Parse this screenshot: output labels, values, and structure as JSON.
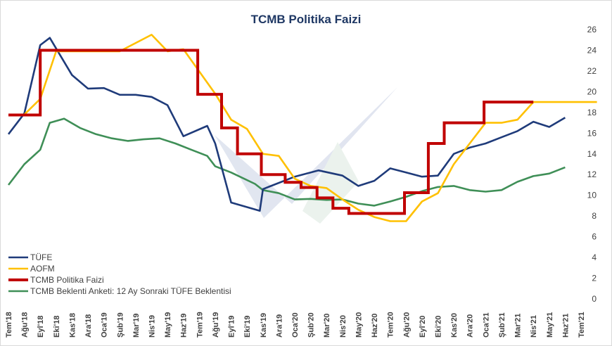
{
  "chart_data": {
    "type": "line",
    "title": "TCMB Politika Faizi",
    "xlabel": "",
    "ylabel": "",
    "ylim": [
      0,
      26
    ],
    "yticks": [
      0,
      2,
      4,
      6,
      8,
      10,
      12,
      14,
      16,
      18,
      20,
      22,
      24,
      26
    ],
    "y_axis_side": "right",
    "grid": false,
    "legend_position": "bottom-left",
    "tick_labels": [
      "Tem'18",
      "Ağu'18",
      "Eyl'18",
      "Eki'18",
      "Kas'18",
      "Ara'18",
      "Oca'19",
      "Şub'19",
      "Mar'19",
      "Nis'19",
      "May'19",
      "Haz'19",
      "Tem'19",
      "Ağu'19",
      "Eyl'19",
      "Eki'19",
      "Kas'19",
      "Ara'19",
      "Oca'20",
      "Şub'20",
      "Mar'20",
      "Nis'20",
      "May'20",
      "Haz'20",
      "Tem'20",
      "Ağu'20",
      "Eyl'20",
      "Eki'20",
      "Kas'20",
      "Ara'20",
      "Oca'21",
      "Şub'21",
      "Mar'21",
      "Nis'21",
      "May'21",
      "Haz'21",
      "Tem'21"
    ],
    "series": [
      {
        "name": "TÜFE",
        "color": "#1f3b7a",
        "style": "line",
        "points": [
          [
            0,
            15.9
          ],
          [
            1,
            17.9
          ],
          [
            2,
            24.5
          ],
          [
            2.6,
            25.2
          ],
          [
            4,
            21.6
          ],
          [
            5,
            20.3
          ],
          [
            6,
            20.35
          ],
          [
            7,
            19.7
          ],
          [
            8,
            19.7
          ],
          [
            9,
            19.5
          ],
          [
            10,
            18.7
          ],
          [
            11,
            15.7
          ],
          [
            12.5,
            16.7
          ],
          [
            13,
            15.0
          ],
          [
            14,
            9.3
          ],
          [
            15.8,
            8.5
          ],
          [
            16,
            10.6
          ],
          [
            18,
            11.8
          ],
          [
            19.5,
            12.4
          ],
          [
            21,
            11.9
          ],
          [
            22,
            10.9
          ],
          [
            23,
            11.4
          ],
          [
            24,
            12.6
          ],
          [
            25,
            12.2
          ],
          [
            26,
            11.8
          ],
          [
            27,
            11.9
          ],
          [
            28,
            14.0
          ],
          [
            29,
            14.6
          ],
          [
            30,
            15.0
          ],
          [
            31,
            15.6
          ],
          [
            32,
            16.2
          ],
          [
            33,
            17.1
          ],
          [
            34,
            16.6
          ],
          [
            35,
            17.5
          ]
        ]
      },
      {
        "name": "AOFM",
        "color": "#ffc000",
        "style": "line",
        "points": [
          [
            0,
            17.8
          ],
          [
            1,
            17.8
          ],
          [
            2,
            19.3
          ],
          [
            3,
            23.9
          ],
          [
            7,
            23.9
          ],
          [
            9,
            25.5
          ],
          [
            10,
            23.9
          ],
          [
            11,
            24.1
          ],
          [
            13,
            19.8
          ],
          [
            14,
            17.3
          ],
          [
            15,
            16.4
          ],
          [
            16,
            14.0
          ],
          [
            17,
            13.8
          ],
          [
            18,
            11.6
          ],
          [
            19,
            10.9
          ],
          [
            20,
            10.7
          ],
          [
            21,
            9.6
          ],
          [
            22,
            8.6
          ],
          [
            23,
            7.9
          ],
          [
            24,
            7.5
          ],
          [
            25,
            7.5
          ],
          [
            26,
            9.4
          ],
          [
            27,
            10.2
          ],
          [
            28,
            13.0
          ],
          [
            29,
            15.0
          ],
          [
            30,
            17.0
          ],
          [
            31,
            17.0
          ],
          [
            32,
            17.3
          ],
          [
            33,
            19.0
          ],
          [
            37,
            19.0
          ]
        ]
      },
      {
        "name": "TCMB Politika Faizi",
        "color": "#c00000",
        "style": "step",
        "points": [
          [
            0,
            17.75
          ],
          [
            2,
            17.75
          ],
          [
            2,
            24.0
          ],
          [
            11.9,
            24.0
          ],
          [
            11.9,
            19.75
          ],
          [
            13.4,
            19.75
          ],
          [
            13.4,
            16.5
          ],
          [
            14.4,
            16.5
          ],
          [
            14.4,
            14.0
          ],
          [
            15.9,
            14.0
          ],
          [
            15.9,
            12.0
          ],
          [
            17.4,
            12.0
          ],
          [
            17.4,
            11.25
          ],
          [
            18.4,
            11.25
          ],
          [
            18.4,
            10.75
          ],
          [
            19.4,
            10.75
          ],
          [
            19.4,
            9.75
          ],
          [
            20.4,
            9.75
          ],
          [
            20.4,
            8.75
          ],
          [
            21.4,
            8.75
          ],
          [
            21.4,
            8.25
          ],
          [
            24.9,
            8.25
          ],
          [
            24.9,
            10.25
          ],
          [
            26.4,
            10.25
          ],
          [
            26.4,
            15.0
          ],
          [
            27.4,
            15.0
          ],
          [
            27.4,
            17.0
          ],
          [
            29.9,
            17.0
          ],
          [
            29.9,
            19.0
          ],
          [
            33,
            19.0
          ]
        ]
      },
      {
        "name": "TCMB Beklenti Anketi: 12 Ay Sonraki TÜFE Beklentisi",
        "color": "#3f8f57",
        "style": "line",
        "points": [
          [
            0,
            11.0
          ],
          [
            1,
            13.0
          ],
          [
            2,
            14.4
          ],
          [
            2.6,
            17.0
          ],
          [
            3.5,
            17.4
          ],
          [
            4.5,
            16.5
          ],
          [
            5.5,
            15.9
          ],
          [
            6.5,
            15.5
          ],
          [
            7.5,
            15.25
          ],
          [
            8.5,
            15.4
          ],
          [
            9.5,
            15.5
          ],
          [
            10.5,
            15.0
          ],
          [
            11.5,
            14.4
          ],
          [
            12.5,
            13.8
          ],
          [
            13,
            12.8
          ],
          [
            14,
            12.2
          ],
          [
            15.5,
            11.1
          ],
          [
            16,
            10.5
          ],
          [
            17,
            10.2
          ],
          [
            18,
            9.6
          ],
          [
            19,
            9.65
          ],
          [
            20,
            9.55
          ],
          [
            21,
            9.6
          ],
          [
            22,
            9.2
          ],
          [
            23,
            9.0
          ],
          [
            24,
            9.4
          ],
          [
            25,
            9.85
          ],
          [
            26,
            10.4
          ],
          [
            27,
            10.8
          ],
          [
            28,
            10.9
          ],
          [
            29,
            10.5
          ],
          [
            30,
            10.35
          ],
          [
            31,
            10.5
          ],
          [
            32,
            11.3
          ],
          [
            33,
            11.85
          ],
          [
            34,
            12.1
          ],
          [
            35,
            12.7
          ]
        ]
      }
    ]
  }
}
